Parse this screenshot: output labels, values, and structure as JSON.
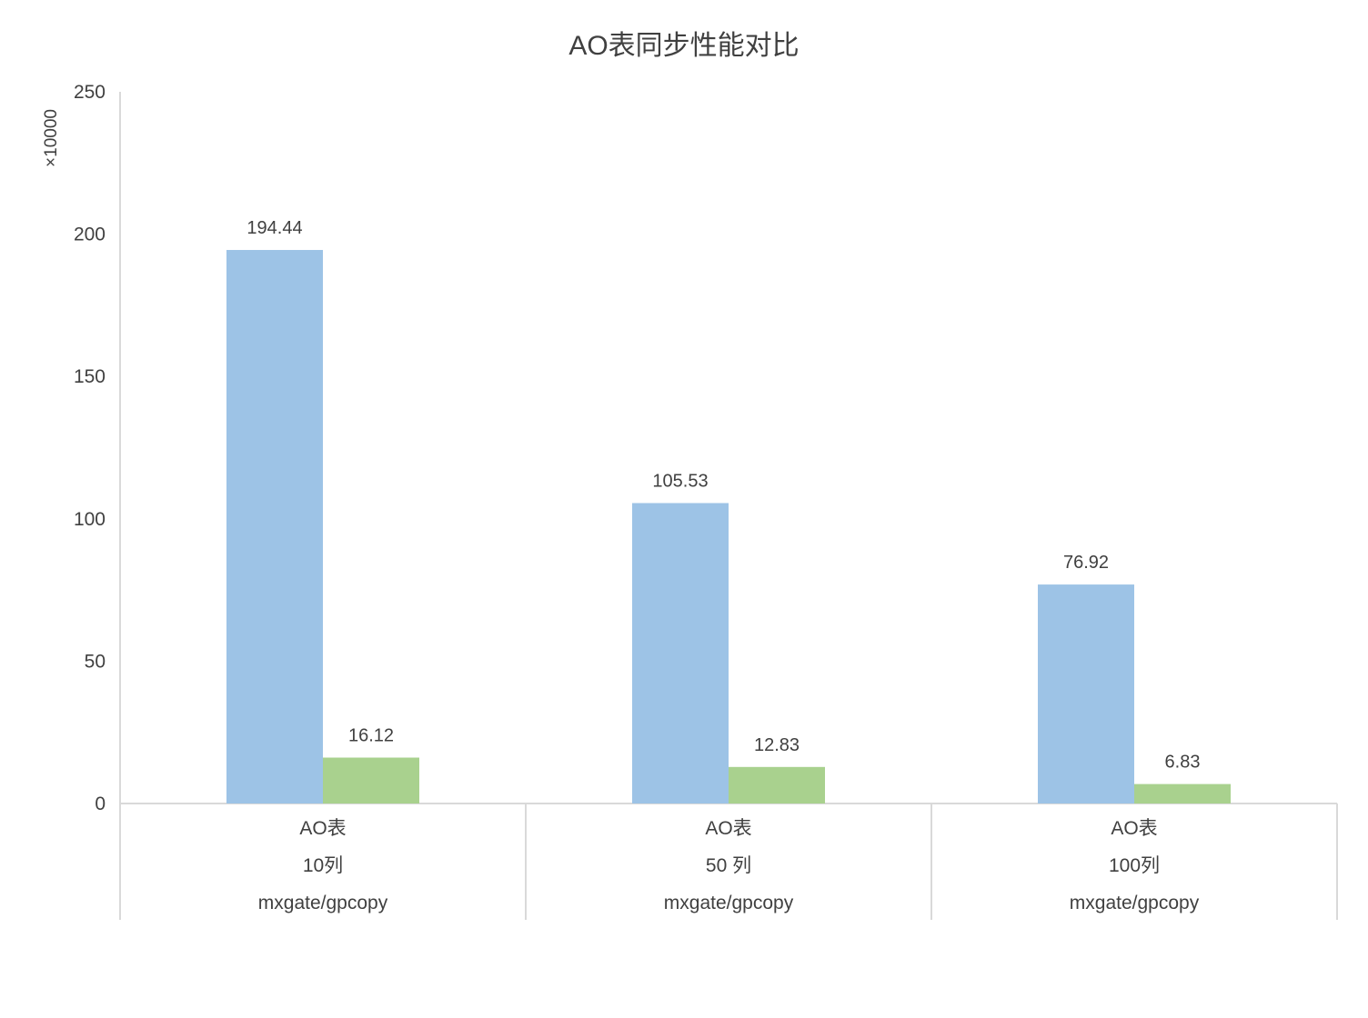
{
  "chart_data": {
    "type": "bar",
    "title": "AO表同步性能对比",
    "unit_label": "×10000",
    "ylim": [
      0,
      250
    ],
    "yticks": [
      "0",
      "50",
      "100",
      "150",
      "200",
      "250"
    ],
    "categories": [
      {
        "lines": [
          "AO表",
          "10列",
          "mxgate/gpcopy"
        ]
      },
      {
        "lines": [
          "AO表",
          "50 列",
          "mxgate/gpcopy"
        ]
      },
      {
        "lines": [
          "AO表",
          "100列",
          "mxgate/gpcopy"
        ]
      }
    ],
    "series": [
      {
        "values": [
          194.44,
          105.53,
          76.92
        ],
        "labels": [
          "194.44",
          "105.53",
          "76.92"
        ],
        "color": "#9dc3e6"
      },
      {
        "values": [
          16.12,
          12.83,
          6.83
        ],
        "labels": [
          "16.12",
          "12.83",
          "6.83"
        ],
        "color": "#a9d18e"
      }
    ],
    "grid": false,
    "legend": "none"
  }
}
